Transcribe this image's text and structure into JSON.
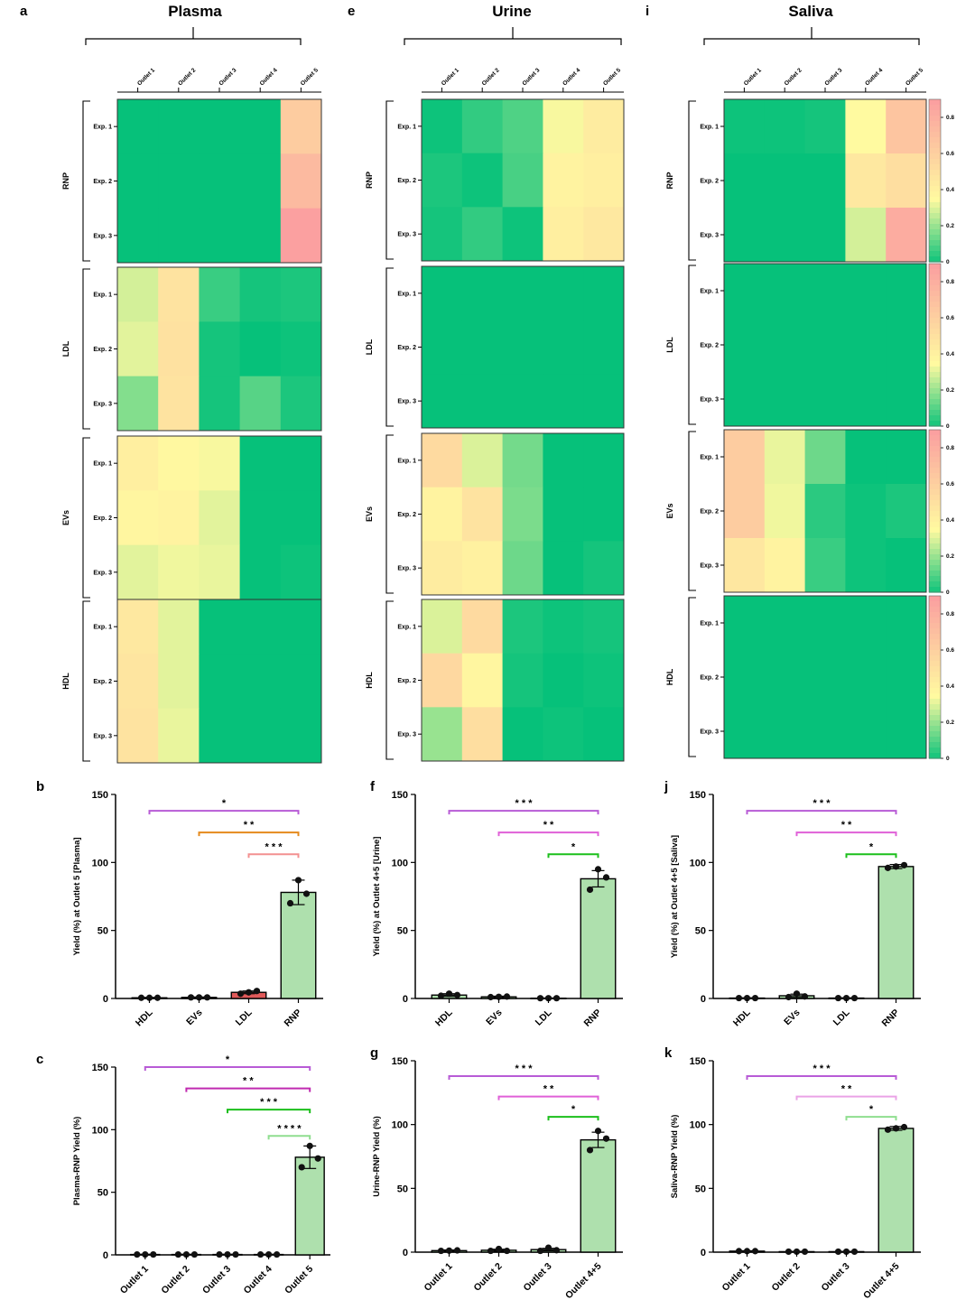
{
  "colors": {
    "scale_low": "#06c17a",
    "scale_mid": "#fffaa0",
    "scale_high": "#fba0a0",
    "bar_fill": "#aee0ad",
    "ldl_plasma_bar": "#e05a5a",
    "purple": "#b85bd6",
    "pink": "#e060d8",
    "magenta": "#c02ab0",
    "orange": "#e58a1c",
    "salmon": "#f39090",
    "green": "#1cbf1c",
    "lightgreen": "#8fde8f",
    "lightpink": "#eaa3e6"
  },
  "columns": [
    {
      "letter_heat": "a",
      "letter_bar": "b",
      "letter_bar2": "c",
      "title": "Plasma",
      "outlets": [
        "Outlet 1",
        "Outlet 2",
        "Outlet 3",
        "Outlet 4",
        "Outlet 5"
      ],
      "rows": [
        "Exp. 1",
        "Exp. 2",
        "Exp. 3"
      ],
      "colorbar": false,
      "colorbar_ticks": [],
      "heatmaps": [
        {
          "group": "RNP",
          "values": [
            [
              0.0,
              0.0,
              0.0,
              0.0,
              0.6
            ],
            [
              0.0,
              0.0,
              0.0,
              0.0,
              0.7
            ],
            [
              0.0,
              0.0,
              0.0,
              0.0,
              0.85
            ]
          ]
        },
        {
          "group": "LDL",
          "values": [
            [
              0.28,
              0.47,
              0.07,
              0.02,
              0.03
            ],
            [
              0.3,
              0.48,
              0.02,
              0.0,
              0.01
            ],
            [
              0.17,
              0.47,
              0.02,
              0.11,
              0.03
            ]
          ]
        },
        {
          "group": "EVs",
          "values": [
            [
              0.4,
              0.35,
              0.33,
              0.0,
              0.0
            ],
            [
              0.36,
              0.38,
              0.3,
              0.0,
              0.0
            ],
            [
              0.3,
              0.32,
              0.31,
              0.0,
              0.01
            ]
          ]
        },
        {
          "group": "HDL",
          "values": [
            [
              0.44,
              0.3,
              0.0,
              0.0,
              0.0
            ],
            [
              0.46,
              0.3,
              0.0,
              0.0,
              0.0
            ],
            [
              0.47,
              0.31,
              0.0,
              0.0,
              0.0
            ]
          ]
        }
      ],
      "bar1": {
        "ylabel": "Yield (%) at Outlet 5 [Plasma]",
        "ylim": [
          0,
          150
        ],
        "yticks": [
          0,
          50,
          100,
          150
        ],
        "categories": [
          "HDL",
          "EVs",
          "LDL",
          "RNP"
        ],
        "values": [
          0.5,
          0.8,
          4.5,
          78
        ],
        "errors": [
          0.3,
          0.3,
          1.0,
          9
        ],
        "points": [
          [
            0.5,
            0.5,
            0.5
          ],
          [
            0.8,
            0.8,
            0.8
          ],
          [
            3.5,
            4.5,
            5.5
          ],
          [
            70,
            87,
            77
          ]
        ],
        "sig": [
          {
            "from": 0,
            "to": 3,
            "stars": "*",
            "color": "purple",
            "y": 138
          },
          {
            "from": 1,
            "to": 3,
            "stars": "* *",
            "color": "orange",
            "y": 122
          },
          {
            "from": 2,
            "to": 3,
            "stars": "* * *",
            "color": "salmon",
            "y": 106
          }
        ]
      },
      "bar2": {
        "ylabel": "Plasma-RNP Yield (%)",
        "ylim": [
          0,
          150
        ],
        "yticks": [
          0,
          50,
          100,
          150
        ],
        "categories": [
          "Outlet 1",
          "Outlet 2",
          "Outlet 3",
          "Outlet 4",
          "Outlet 5"
        ],
        "values": [
          0.3,
          0.3,
          0.3,
          0.3,
          78
        ],
        "errors": [
          0.2,
          0.2,
          0.2,
          0.2,
          9
        ],
        "points": [
          [
            0.3,
            0.3,
            0.3
          ],
          [
            0.3,
            0.3,
            0.3
          ],
          [
            0.3,
            0.3,
            0.3
          ],
          [
            0.3,
            0.3,
            0.3
          ],
          [
            70,
            87,
            77
          ]
        ],
        "sig": [
          {
            "from": 0,
            "to": 4,
            "stars": "*",
            "color": "purple",
            "y": 150
          },
          {
            "from": 1,
            "to": 4,
            "stars": "* *",
            "color": "magenta",
            "y": 133
          },
          {
            "from": 2,
            "to": 4,
            "stars": "* * *",
            "color": "green",
            "y": 116
          },
          {
            "from": 3,
            "to": 4,
            "stars": "* * * *",
            "color": "lightgreen",
            "y": 95
          }
        ]
      }
    },
    {
      "letter_heat": "e",
      "letter_bar": "f",
      "letter_bar2": "g",
      "title": "Urine",
      "outlets": [
        "Outlet 1",
        "Outlet 2",
        "Outlet 3",
        "Outlet 4",
        "Outlet 5"
      ],
      "rows": [
        "Exp. 1",
        "Exp. 2",
        "Exp. 3"
      ],
      "colorbar": false,
      "colorbar_ticks": [],
      "heatmaps": [
        {
          "group": "RNP",
          "values": [
            [
              0.01,
              0.06,
              0.1,
              0.33,
              0.42
            ],
            [
              0.03,
              0.01,
              0.09,
              0.38,
              0.4
            ],
            [
              0.02,
              0.06,
              0.01,
              0.4,
              0.44
            ]
          ]
        },
        {
          "group": "LDL",
          "values": [
            [
              0.0,
              0.0,
              0.0,
              0.0,
              0.0
            ],
            [
              0.0,
              0.0,
              0.0,
              0.0,
              0.0
            ],
            [
              0.0,
              0.0,
              0.0,
              0.0,
              0.0
            ]
          ]
        },
        {
          "group": "EVs",
          "values": [
            [
              0.52,
              0.29,
              0.15,
              0.0,
              0.0
            ],
            [
              0.38,
              0.47,
              0.16,
              0.0,
              0.0
            ],
            [
              0.42,
              0.39,
              0.14,
              0.0,
              0.02
            ]
          ]
        },
        {
          "group": "HDL",
          "values": [
            [
              0.29,
              0.52,
              0.03,
              0.01,
              0.02
            ],
            [
              0.53,
              0.36,
              0.02,
              0.0,
              0.01
            ],
            [
              0.2,
              0.5,
              0.0,
              0.01,
              0.0
            ]
          ]
        }
      ],
      "bar1": {
        "ylabel": "Yield (%) at Outlet 4+5 [Urine]",
        "ylim": [
          0,
          150
        ],
        "yticks": [
          0,
          50,
          100,
          150
        ],
        "categories": [
          "HDL",
          "EVs",
          "LDL",
          "RNP"
        ],
        "values": [
          2.5,
          1.2,
          0.2,
          88
        ],
        "errors": [
          1.0,
          0.5,
          0.2,
          6
        ],
        "points": [
          [
            2,
            3.5,
            2.5
          ],
          [
            1,
            1.2,
            1.4
          ],
          [
            0.2,
            0.2,
            0.2
          ],
          [
            80,
            95,
            89
          ]
        ],
        "sig": [
          {
            "from": 0,
            "to": 3,
            "stars": "* * *",
            "color": "purple",
            "y": 138
          },
          {
            "from": 1,
            "to": 3,
            "stars": "* *",
            "color": "pink",
            "y": 122
          },
          {
            "from": 2,
            "to": 3,
            "stars": "*",
            "color": "green",
            "y": 106
          }
        ]
      },
      "bar2": {
        "ylabel": "Urine-RNP Yield (%)",
        "ylim": [
          0,
          150
        ],
        "yticks": [
          0,
          50,
          100,
          150
        ],
        "categories": [
          "Outlet 1",
          "Outlet 2",
          "Outlet 3",
          "Outlet 4+5"
        ],
        "values": [
          1.2,
          1.5,
          2.0,
          88
        ],
        "errors": [
          0.5,
          0.8,
          1.0,
          6
        ],
        "points": [
          [
            1,
            1.2,
            1.4
          ],
          [
            1,
            2.5,
            1
          ],
          [
            1,
            3.5,
            1.5
          ],
          [
            80,
            95,
            89
          ]
        ],
        "sig": [
          {
            "from": 0,
            "to": 3,
            "stars": "* * *",
            "color": "purple",
            "y": 138
          },
          {
            "from": 1,
            "to": 3,
            "stars": "* *",
            "color": "pink",
            "y": 122
          },
          {
            "from": 2,
            "to": 3,
            "stars": "*",
            "color": "green",
            "y": 106
          }
        ]
      }
    },
    {
      "letter_heat": "i",
      "letter_bar": "j",
      "letter_bar2": "k",
      "title": "Saliva",
      "outlets": [
        "Outlet 1",
        "Outlet 2",
        "Outlet 3",
        "Outlet 4",
        "Outlet 5"
      ],
      "rows": [
        "Exp. 1",
        "Exp. 2",
        "Exp. 3"
      ],
      "colorbar": true,
      "colorbar_ticks": [
        "0",
        "0.2",
        "0.4",
        "0.6",
        "0.8"
      ],
      "heatmaps": [
        {
          "group": "RNP",
          "values": [
            [
              0.01,
              0.01,
              0.02,
              0.34,
              0.64
            ],
            [
              0.0,
              0.0,
              0.0,
              0.44,
              0.5
            ],
            [
              0.0,
              0.0,
              0.0,
              0.28,
              0.78
            ]
          ]
        },
        {
          "group": "LDL",
          "values": [
            [
              0.0,
              0.0,
              0.0,
              0.0,
              0.0
            ],
            [
              0.0,
              0.0,
              0.0,
              0.0,
              0.0
            ],
            [
              0.0,
              0.0,
              0.0,
              0.0,
              0.0
            ]
          ]
        },
        {
          "group": "EVs",
          "values": [
            [
              0.6,
              0.31,
              0.14,
              0.0,
              0.0
            ],
            [
              0.6,
              0.32,
              0.05,
              0.01,
              0.03
            ],
            [
              0.45,
              0.38,
              0.07,
              0.01,
              0.0
            ]
          ]
        },
        {
          "group": "HDL",
          "values": [
            [
              0.0,
              0.0,
              0.0,
              0.0,
              0.0
            ],
            [
              0.0,
              0.0,
              0.0,
              0.0,
              0.0
            ],
            [
              0.0,
              0.0,
              0.0,
              0.0,
              0.0
            ]
          ]
        }
      ],
      "bar1": {
        "ylabel": "Yield (%) at Outlet 4+5 [Saliva]",
        "ylim": [
          0,
          150
        ],
        "yticks": [
          0,
          50,
          100,
          150
        ],
        "categories": [
          "HDL",
          "EVs",
          "LDL",
          "RNP"
        ],
        "values": [
          0.3,
          2.0,
          0.3,
          97
        ],
        "errors": [
          0.2,
          1.2,
          0.2,
          1.5
        ],
        "points": [
          [
            0.3,
            0.3,
            0.3
          ],
          [
            1,
            3.5,
            1.5
          ],
          [
            0.3,
            0.3,
            0.3
          ],
          [
            96,
            97,
            98
          ]
        ],
        "sig": [
          {
            "from": 0,
            "to": 3,
            "stars": "* * *",
            "color": "purple",
            "y": 138
          },
          {
            "from": 1,
            "to": 3,
            "stars": "* *",
            "color": "pink",
            "y": 122
          },
          {
            "from": 2,
            "to": 3,
            "stars": "*",
            "color": "green",
            "y": 106
          }
        ]
      },
      "bar2": {
        "ylabel": "Saliva-RNP Yield (%)",
        "ylim": [
          0,
          150
        ],
        "yticks": [
          0,
          50,
          100,
          150
        ],
        "categories": [
          "Outlet 1",
          "Outlet 2",
          "Outlet 3",
          "Outlet 4+5"
        ],
        "values": [
          0.8,
          0.4,
          0.4,
          97
        ],
        "errors": [
          0.3,
          0.2,
          0.2,
          1.5
        ],
        "points": [
          [
            0.8,
            0.8,
            0.8
          ],
          [
            0.4,
            0.4,
            0.4
          ],
          [
            0.4,
            0.4,
            0.4
          ],
          [
            96,
            97,
            98
          ]
        ],
        "sig": [
          {
            "from": 0,
            "to": 3,
            "stars": "* * *",
            "color": "purple",
            "y": 138
          },
          {
            "from": 1,
            "to": 3,
            "stars": "* *",
            "color": "lightpink",
            "y": 122
          },
          {
            "from": 2,
            "to": 3,
            "stars": "*",
            "color": "lightgreen",
            "y": 106
          }
        ]
      }
    }
  ]
}
